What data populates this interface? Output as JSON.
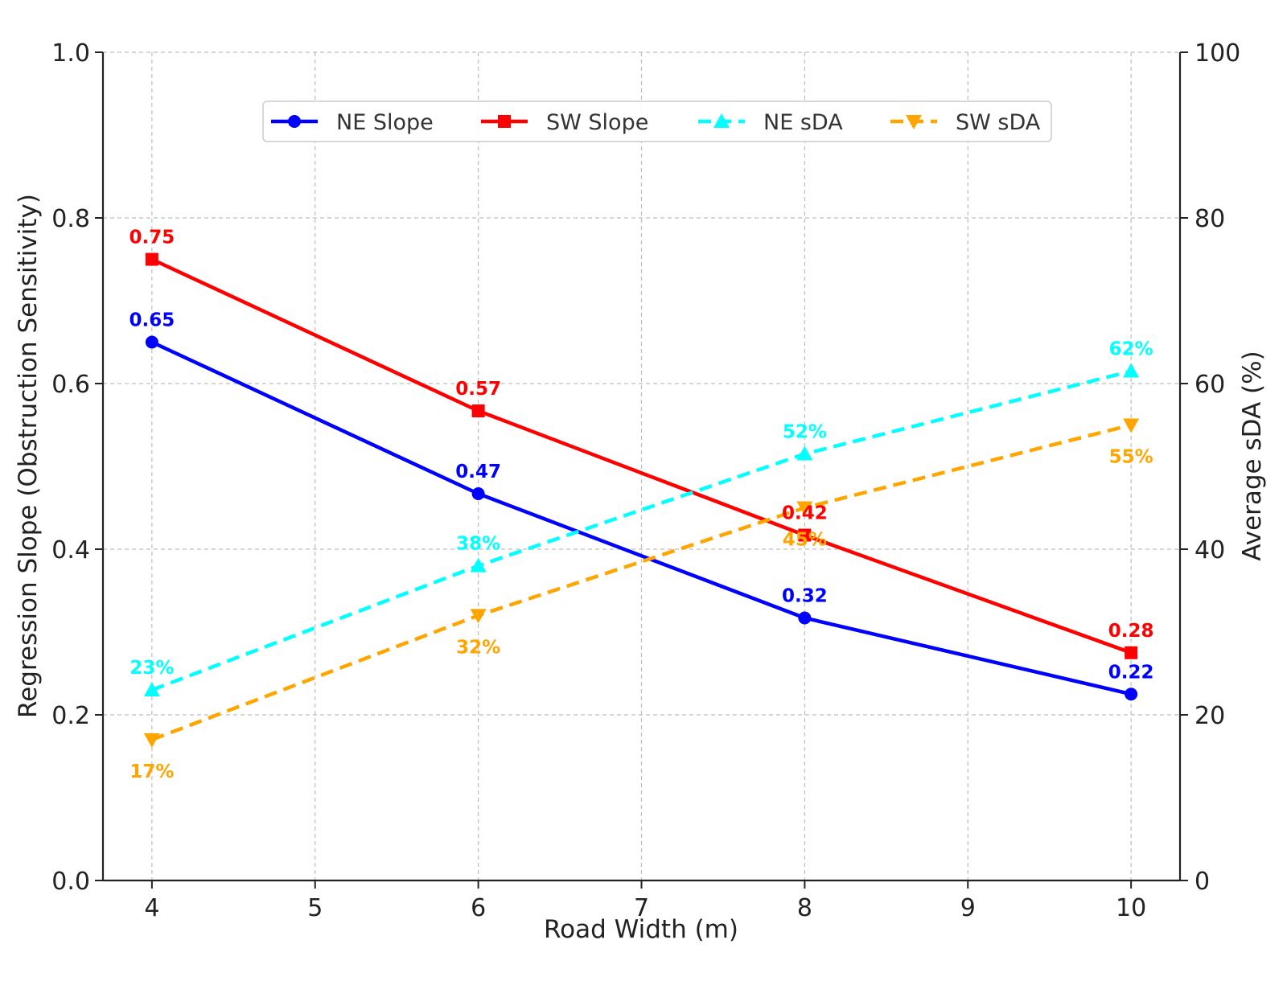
{
  "chart_data": {
    "type": "line",
    "x": [
      4,
      6,
      8,
      10
    ],
    "xlabel": "Road Width (m)",
    "xlim": [
      3.7,
      10.3
    ],
    "xticks": [
      4,
      5,
      6,
      7,
      8,
      9,
      10
    ],
    "ylabel": "Regression Slope (Obstruction Sensitivity)",
    "ylim": [
      0,
      1
    ],
    "yticks": [
      "0.0",
      "0.2",
      "0.4",
      "0.6",
      "0.8",
      "1.0"
    ],
    "y2label": "Average sDA (%)",
    "y2lim": [
      0,
      100
    ],
    "y2ticks": [
      "0",
      "20",
      "40",
      "60",
      "80",
      "100"
    ],
    "grid": true,
    "legend_position": "top-center",
    "series": [
      {
        "name": "NE Slope",
        "axis": "left",
        "values": [
          0.65,
          0.467,
          0.317,
          0.225
        ],
        "labels": [
          "0.65",
          "0.47",
          "0.32",
          "0.22"
        ],
        "label_position": "above",
        "color": "#0000ff",
        "style": "solid",
        "marker": "circle"
      },
      {
        "name": "SW Slope",
        "axis": "left",
        "values": [
          0.75,
          0.567,
          0.417,
          0.275
        ],
        "labels": [
          "0.75",
          "0.57",
          "0.42",
          "0.28"
        ],
        "label_position": "above",
        "color": "#ff0000",
        "style": "solid",
        "marker": "square"
      },
      {
        "name": "NE sDA",
        "axis": "right",
        "values": [
          23,
          38,
          51.5,
          61.5
        ],
        "labels": [
          "23%",
          "38%",
          "52%",
          "62%"
        ],
        "label_position": "above",
        "color": "#00ffff",
        "style": "dashed",
        "marker": "triangle-up"
      },
      {
        "name": "SW sDA",
        "axis": "right",
        "values": [
          17,
          32,
          45,
          55
        ],
        "labels": [
          "17%",
          "32%",
          "45%",
          "55%"
        ],
        "label_position": "below",
        "color": "#ffa500",
        "style": "dashed",
        "marker": "triangle-down"
      }
    ]
  }
}
